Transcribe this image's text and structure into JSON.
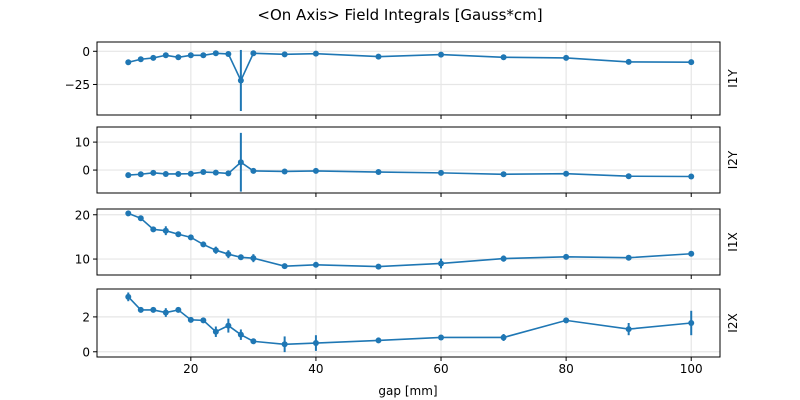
{
  "chart_data": [
    {
      "type": "line",
      "title": "<On Axis> Field Integrals [Gauss*cm]",
      "xlabel": "gap [mm]",
      "ylabel": "I1Y",
      "x": [
        10,
        12,
        14,
        16,
        18,
        20,
        22,
        24,
        26,
        28,
        30,
        35,
        40,
        50,
        60,
        70,
        80,
        90,
        100
      ],
      "y": [
        -8.3,
        -6,
        -5,
        -3,
        -4.5,
        -3,
        -3,
        -1.5,
        -2,
        -22,
        -1.5,
        -2.3,
        -1.8,
        -4,
        -2.5,
        -4.5,
        -5,
        -8,
        -8.2
      ],
      "yerr": [
        0.3,
        0.3,
        0.3,
        0.3,
        0.3,
        0.3,
        0.3,
        0.3,
        0.3,
        23,
        0.3,
        0.3,
        0.3,
        0.3,
        0.3,
        0.3,
        1.5,
        0.3,
        0.3
      ],
      "xlim": [
        5,
        104.6
      ],
      "ylim": [
        -48,
        7
      ],
      "yticks": [
        -25,
        0
      ],
      "xticks": [
        20,
        40,
        60,
        80,
        100
      ],
      "grid": true,
      "color": "#1f77b4"
    },
    {
      "type": "line",
      "ylabel": "I2Y",
      "x": [
        10,
        12,
        14,
        16,
        18,
        20,
        22,
        24,
        26,
        28,
        30,
        35,
        40,
        50,
        60,
        70,
        80,
        90,
        100
      ],
      "y": [
        -1.8,
        -1.5,
        -1,
        -1.4,
        -1.4,
        -1.3,
        -0.7,
        -0.9,
        -1.2,
        2.8,
        -0.3,
        -0.5,
        -0.3,
        -0.7,
        -1,
        -1.5,
        -1.3,
        -2.2,
        -2.3
      ],
      "yerr": [
        0.2,
        0.2,
        0.2,
        0.2,
        0.2,
        0.2,
        0.2,
        0.2,
        0.2,
        10.5,
        0.2,
        0.2,
        0.2,
        0.2,
        0.2,
        0.2,
        0.2,
        0.2,
        0.2
      ],
      "xlim": [
        5,
        104.6
      ],
      "ylim": [
        -8.2,
        15.4
      ],
      "yticks": [
        0,
        10
      ],
      "xticks": [
        20,
        40,
        60,
        80,
        100
      ],
      "grid": true,
      "color": "#1f77b4"
    },
    {
      "type": "line",
      "ylabel": "I1X",
      "x": [
        10,
        12,
        14,
        16,
        18,
        20,
        22,
        24,
        26,
        28,
        30,
        35,
        40,
        50,
        60,
        70,
        80,
        90,
        100
      ],
      "y": [
        20.3,
        19.2,
        16.7,
        16.4,
        15.6,
        14.9,
        13.3,
        12,
        11.1,
        10.4,
        10.2,
        8.4,
        8.7,
        8.3,
        9,
        10.1,
        10.5,
        10.3,
        11.2
      ],
      "yerr": [
        0.2,
        0.6,
        0.3,
        1,
        0.3,
        0.3,
        0.3,
        0.8,
        0.9,
        0.4,
        0.9,
        0.3,
        0.2,
        0.3,
        1.1,
        0.7,
        0.2,
        0.2,
        0.3
      ],
      "xlim": [
        5,
        104.6
      ],
      "ylim": [
        6.4,
        21.3
      ],
      "yticks": [
        10,
        20
      ],
      "xticks": [
        20,
        40,
        60,
        80,
        100
      ],
      "grid": true,
      "color": "#1f77b4"
    },
    {
      "type": "line",
      "ylabel": "I2X",
      "x": [
        10,
        12,
        14,
        16,
        18,
        20,
        22,
        24,
        26,
        28,
        30,
        35,
        40,
        50,
        60,
        70,
        80,
        90,
        100
      ],
      "y": [
        3.15,
        2.4,
        2.4,
        2.25,
        2.4,
        1.83,
        1.8,
        1.15,
        1.5,
        0.98,
        0.6,
        0.43,
        0.5,
        0.65,
        0.82,
        0.82,
        1.8,
        1.3,
        1.65
      ],
      "yerr": [
        0.25,
        0.15,
        0.15,
        0.25,
        0.15,
        0.05,
        0.05,
        0.3,
        0.4,
        0.3,
        0.15,
        0.45,
        0.45,
        0.15,
        0.05,
        0.2,
        0.1,
        0.35,
        0.7
      ],
      "xlim": [
        5,
        104.6
      ],
      "ylim": [
        -0.3,
        3.6
      ],
      "yticks": [
        0,
        2
      ],
      "xticks": [
        20,
        40,
        60,
        80,
        100
      ],
      "grid": true,
      "color": "#1f77b4"
    }
  ]
}
